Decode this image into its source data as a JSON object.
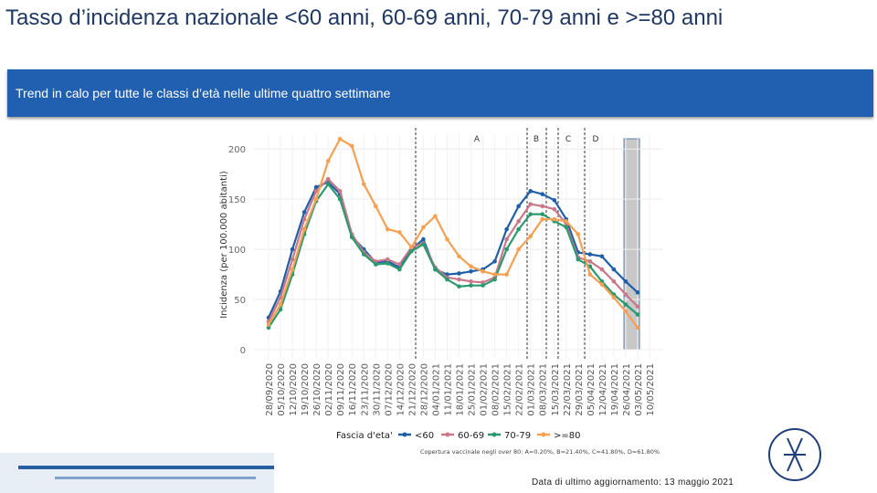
{
  "slide": {
    "title": "Tasso d’incidenza nazionale <60 anni, 60-69 anni, 70-79 anni e >=80 anni",
    "banner": "Trend in calo per tutte le classi d’età nelle ultime quattro settimane",
    "footer": "Data di ultimo aggiornamento: 13 maggio 2021"
  },
  "chart_data": {
    "type": "line",
    "y_label": "Incidenza (per 100.000 abitanti)",
    "legend_title": "Fascia d'eta'",
    "caption": "Copertura vaccinale negli over 80: A=0.20%, B=21.40%, C=41.80%, D=61.80%",
    "annotations": [
      "A",
      "B",
      "C",
      "D"
    ],
    "categories": [
      "28/09/2020",
      "05/10/2020",
      "12/10/2020",
      "19/10/2020",
      "26/10/2020",
      "02/11/2020",
      "09/11/2020",
      "16/11/2020",
      "23/11/2020",
      "30/11/2020",
      "07/12/2020",
      "14/12/2020",
      "21/12/2020",
      "28/12/2020",
      "04/01/2021",
      "11/01/2021",
      "18/01/2021",
      "25/01/2021",
      "01/02/2021",
      "08/02/2021",
      "15/02/2021",
      "22/02/2021",
      "01/03/2021",
      "08/03/2021",
      "15/03/2021",
      "22/03/2021",
      "29/03/2021",
      "05/04/2021",
      "12/04/2021",
      "19/04/2021",
      "26/04/2021",
      "03/05/2021",
      "10/05/2021"
    ],
    "series": [
      {
        "name": "<60",
        "color": "#1f5fa8",
        "values": [
          32,
          58,
          100,
          137,
          162,
          167,
          155,
          113,
          100,
          87,
          88,
          82,
          100,
          110,
          80,
          75,
          76,
          78,
          80,
          88,
          120,
          143,
          158,
          155,
          149,
          130,
          97,
          95,
          93,
          80,
          68,
          57,
          null
        ]
      },
      {
        "name": "60-69",
        "color": "#c9788a",
        "values": [
          28,
          52,
          90,
          130,
          158,
          170,
          158,
          115,
          97,
          88,
          90,
          85,
          102,
          106,
          82,
          72,
          70,
          68,
          67,
          72,
          110,
          128,
          145,
          143,
          140,
          125,
          92,
          88,
          80,
          68,
          55,
          43,
          null
        ]
      },
      {
        "name": "70-79",
        "color": "#2a9a6e",
        "values": [
          22,
          40,
          75,
          115,
          148,
          165,
          150,
          112,
          95,
          85,
          86,
          80,
          98,
          105,
          80,
          70,
          63,
          64,
          64,
          70,
          100,
          120,
          135,
          135,
          128,
          122,
          90,
          83,
          68,
          55,
          45,
          35,
          null
        ]
      },
      {
        "name": ">=80",
        "color": "#f5a053",
        "values": [
          25,
          45,
          80,
          120,
          150,
          188,
          210,
          203,
          165,
          143,
          120,
          117,
          102,
          122,
          133,
          110,
          93,
          83,
          78,
          75,
          75,
          100,
          113,
          130,
          130,
          128,
          115,
          75,
          65,
          52,
          38,
          22,
          null
        ]
      }
    ],
    "ylim": [
      0,
      212
    ],
    "yticks": [
      0,
      50,
      100,
      150,
      200
    ],
    "grid": true
  }
}
